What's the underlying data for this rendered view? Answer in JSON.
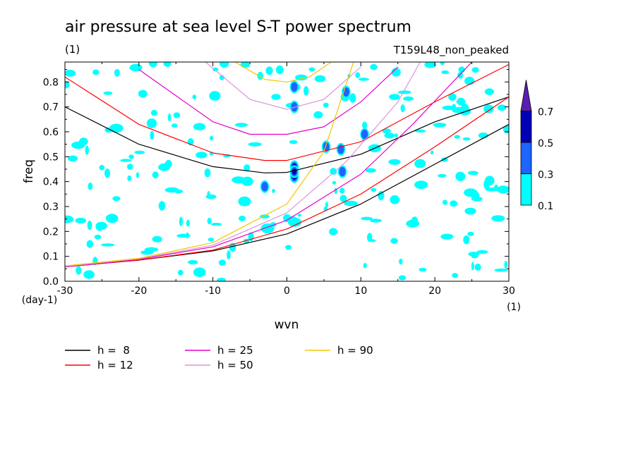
{
  "chart_data": {
    "type": "contour",
    "title": "air pressure at sea level S-T power spectrum",
    "subtitle_left": "(1)",
    "subtitle_right": "T159L48_non_peaked",
    "xlabel": "wvn",
    "ylabel": "freq",
    "x_unit": "(1)",
    "y_unit": "(day-1)",
    "xlim": [
      -30,
      30
    ],
    "ylim": [
      0.0,
      0.88
    ],
    "xticks": [
      -30,
      -20,
      -10,
      0,
      10,
      20,
      30
    ],
    "xtick_labels": [
      "-30",
      "-20",
      "-10",
      "0",
      "10",
      "20",
      "30"
    ],
    "yticks": [
      0.0,
      0.1,
      0.2,
      0.3,
      0.4,
      0.5,
      0.6,
      0.7,
      0.8
    ],
    "ytick_labels": [
      "0.0",
      "0.1",
      "0.2",
      "0.3",
      "0.4",
      "0.5",
      "0.6",
      "0.7",
      "0.8"
    ],
    "colorbar": {
      "levels": [
        "0.1",
        "0.3",
        "0.5",
        "0.7"
      ],
      "colors": [
        "#00ffff",
        "#1e64ff",
        "#0000b4",
        "#5a1eb4"
      ]
    },
    "dispersion_curves": [
      {
        "label": "h =  8",
        "h": 8,
        "color": "#000000",
        "upper": [
          [
            -30,
            0.7
          ],
          [
            -20,
            0.55
          ],
          [
            -10,
            0.46
          ],
          [
            -3,
            0.435
          ],
          [
            0,
            0.437
          ],
          [
            10,
            0.51
          ],
          [
            20,
            0.64
          ],
          [
            30,
            0.74
          ]
        ],
        "lower": [
          [
            -30,
            0.058
          ],
          [
            -20,
            0.085
          ],
          [
            -10,
            0.122
          ],
          [
            0,
            0.19
          ],
          [
            10,
            0.31
          ],
          [
            20,
            0.47
          ],
          [
            30,
            0.63
          ]
        ]
      },
      {
        "label": "h = 12",
        "h": 12,
        "color": "#ff0000",
        "upper": [
          [
            -30,
            0.82
          ],
          [
            -20,
            0.63
          ],
          [
            -10,
            0.515
          ],
          [
            -3,
            0.485
          ],
          [
            0,
            0.485
          ],
          [
            10,
            0.56
          ],
          [
            20,
            0.72
          ],
          [
            30,
            0.87
          ]
        ],
        "lower": [
          [
            -30,
            0.058
          ],
          [
            -20,
            0.085
          ],
          [
            -10,
            0.125
          ],
          [
            0,
            0.21
          ],
          [
            10,
            0.35
          ],
          [
            20,
            0.54
          ],
          [
            30,
            0.74
          ]
        ]
      },
      {
        "label": "h = 25",
        "h": 25,
        "color": "#e600c8",
        "upper": [
          [
            -20,
            0.85
          ],
          [
            -10,
            0.64
          ],
          [
            -5,
            0.59
          ],
          [
            0,
            0.59
          ],
          [
            5,
            0.62
          ],
          [
            10,
            0.72
          ],
          [
            15,
            0.86
          ]
        ],
        "lower": [
          [
            -30,
            0.058
          ],
          [
            -20,
            0.088
          ],
          [
            -10,
            0.138
          ],
          [
            0,
            0.245
          ],
          [
            10,
            0.43
          ],
          [
            17,
            0.63
          ],
          [
            25,
            0.88
          ]
        ]
      },
      {
        "label": "h = 50",
        "h": 50,
        "color": "#dc96dc",
        "upper": [
          [
            -11,
            0.88
          ],
          [
            -5,
            0.73
          ],
          [
            0,
            0.69
          ],
          [
            5,
            0.73
          ],
          [
            10,
            0.86
          ]
        ],
        "lower": [
          [
            -30,
            0.06
          ],
          [
            -20,
            0.09
          ],
          [
            -10,
            0.145
          ],
          [
            0,
            0.275
          ],
          [
            8,
            0.48
          ],
          [
            15,
            0.72
          ],
          [
            18,
            0.88
          ]
        ]
      },
      {
        "label": "h = 90",
        "h": 90,
        "color": "#f0c800",
        "upper": [
          [
            -7,
            0.88
          ],
          [
            -3,
            0.81
          ],
          [
            0,
            0.8
          ],
          [
            3,
            0.82
          ],
          [
            6,
            0.88
          ]
        ],
        "lower": [
          [
            -30,
            0.062
          ],
          [
            -20,
            0.092
          ],
          [
            -10,
            0.155
          ],
          [
            0,
            0.31
          ],
          [
            5,
            0.52
          ],
          [
            9,
            0.88
          ]
        ]
      }
    ],
    "power_spots": [
      {
        "x": 1.0,
        "y": 0.42,
        "level": 3
      },
      {
        "x": 1.0,
        "y": 0.46,
        "level": 4
      },
      {
        "x": 1.0,
        "y": 0.44,
        "level": 3
      },
      {
        "x": 7.5,
        "y": 0.44,
        "level": 2
      },
      {
        "x": 5.3,
        "y": 0.54,
        "level": 2
      },
      {
        "x": 7.3,
        "y": 0.53,
        "level": 2
      },
      {
        "x": 8.0,
        "y": 0.76,
        "level": 2
      },
      {
        "x": 10.5,
        "y": 0.59,
        "level": 2
      },
      {
        "x": 1.0,
        "y": 0.78,
        "level": 2
      },
      {
        "x": 1.0,
        "y": 0.7,
        "level": 2
      },
      {
        "x": -3.0,
        "y": 0.38,
        "level": 2
      }
    ],
    "legend": [
      "h =  8",
      "h = 12",
      "h = 25",
      "h = 50",
      "h = 90"
    ]
  }
}
